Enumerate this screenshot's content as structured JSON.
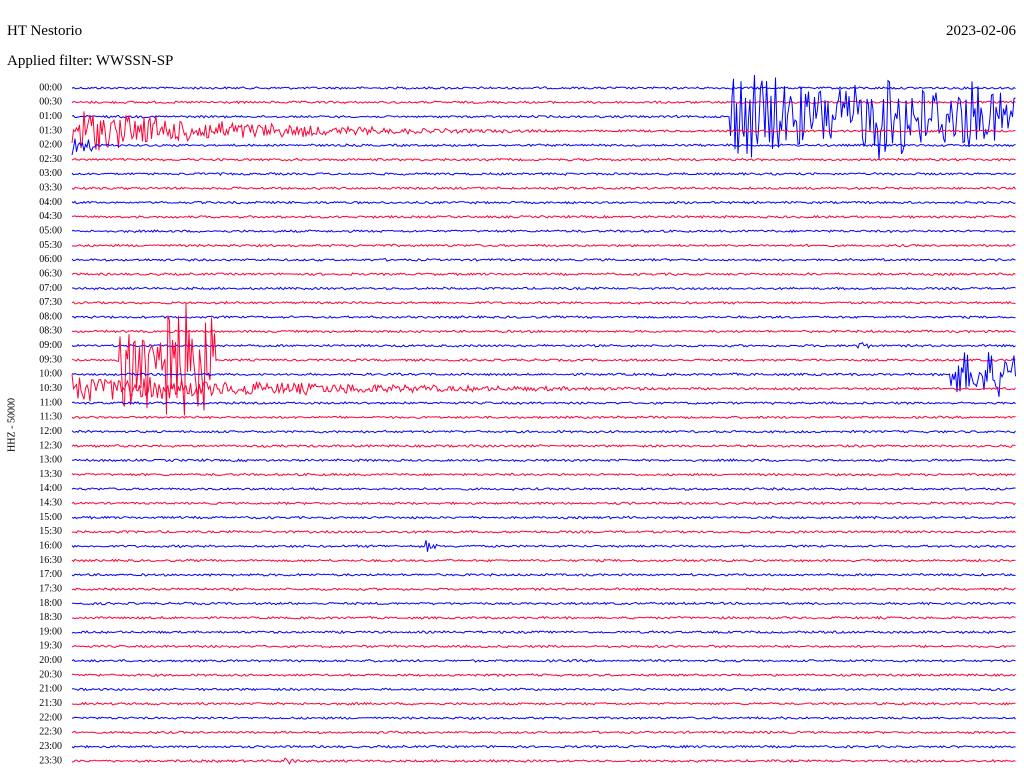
{
  "header": {
    "station": "HT Nestorio",
    "date": "2023-02-06",
    "filter": "Applied filter: WWSSN-SP",
    "channel": "HHZ - 50000"
  },
  "rows": [
    "00:00",
    "00:30",
    "01:00",
    "01:30",
    "02:00",
    "02:30",
    "03:00",
    "03:30",
    "04:00",
    "04:30",
    "05:00",
    "05:30",
    "06:00",
    "06:30",
    "07:00",
    "07:30",
    "08:00",
    "08:30",
    "09:00",
    "09:30",
    "10:00",
    "10:30",
    "11:00",
    "11:30",
    "12:00",
    "12:30",
    "13:00",
    "13:30",
    "14:00",
    "14:30",
    "15:00",
    "15:30",
    "16:00",
    "16:30",
    "17:00",
    "17:30",
    "18:00",
    "18:30",
    "19:00",
    "19:30",
    "20:00",
    "20:30",
    "21:00",
    "21:30",
    "22:00",
    "22:30",
    "23:00",
    "23:30"
  ]
}
